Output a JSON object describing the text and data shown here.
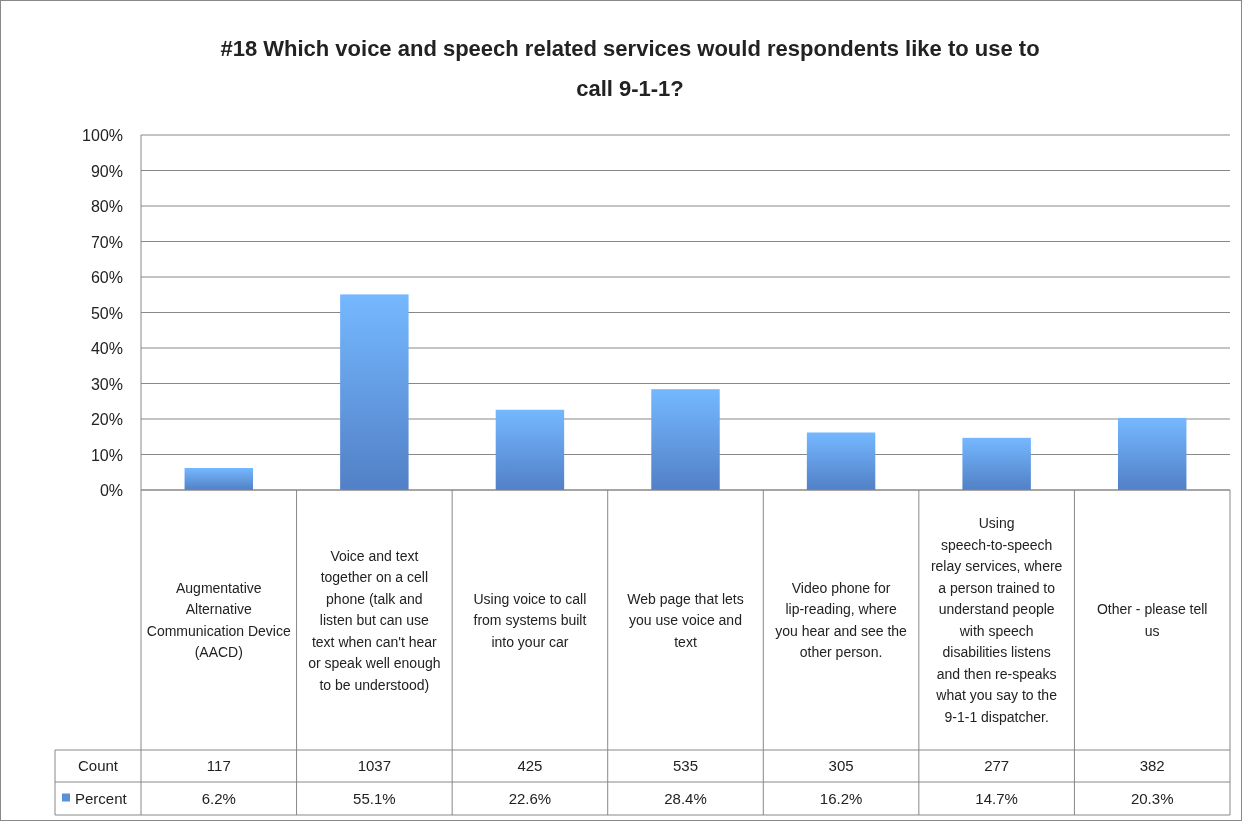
{
  "chart_data": {
    "type": "bar",
    "title": "#18 Which voice and speech related services would respondents like to use to call 9-1-1?",
    "categories": [
      "Augmentative Alternative Communication Device (AACD)",
      "Voice and text together on a cell phone (talk and listen but can use text when can't hear or speak well enough to be understood)",
      "Using voice to call from systems built into your car",
      "Web page that lets you use voice and text",
      "Video phone for lip-reading, where you hear and see the other person.",
      "Using speech-to-speech relay services, where a person trained to understand people with speech disabilities listens and then re-speaks what you say to the 9-1-1 dispatcher.",
      "Other - please tell us"
    ],
    "series": [
      {
        "name": "Percent",
        "color": "#5b8fdc",
        "values": [
          6.2,
          55.1,
          22.6,
          28.4,
          16.2,
          14.7,
          20.3
        ],
        "value_labels": [
          "6.2%",
          "55.1%",
          "22.6%",
          "28.4%",
          "16.2%",
          "14.7%",
          "20.3%"
        ]
      }
    ],
    "annotations": [
      "Count",
      "117",
      "1037",
      "425",
      "535",
      "305",
      "277",
      "382"
    ],
    "ylim": [
      0,
      100
    ],
    "yticks": [
      {
        "value": 0,
        "label": "0%"
      },
      {
        "value": 10,
        "label": "10%"
      },
      {
        "value": 20,
        "label": "20%"
      },
      {
        "value": 30,
        "label": "30%"
      },
      {
        "value": 40,
        "label": "40%"
      },
      {
        "value": 50,
        "label": "50%"
      },
      {
        "value": 60,
        "label": "60%"
      },
      {
        "value": 70,
        "label": "70%"
      },
      {
        "value": 80,
        "label": "80%"
      },
      {
        "value": 90,
        "label": "90%"
      },
      {
        "value": 100,
        "label": "100%"
      }
    ],
    "grid": true
  }
}
